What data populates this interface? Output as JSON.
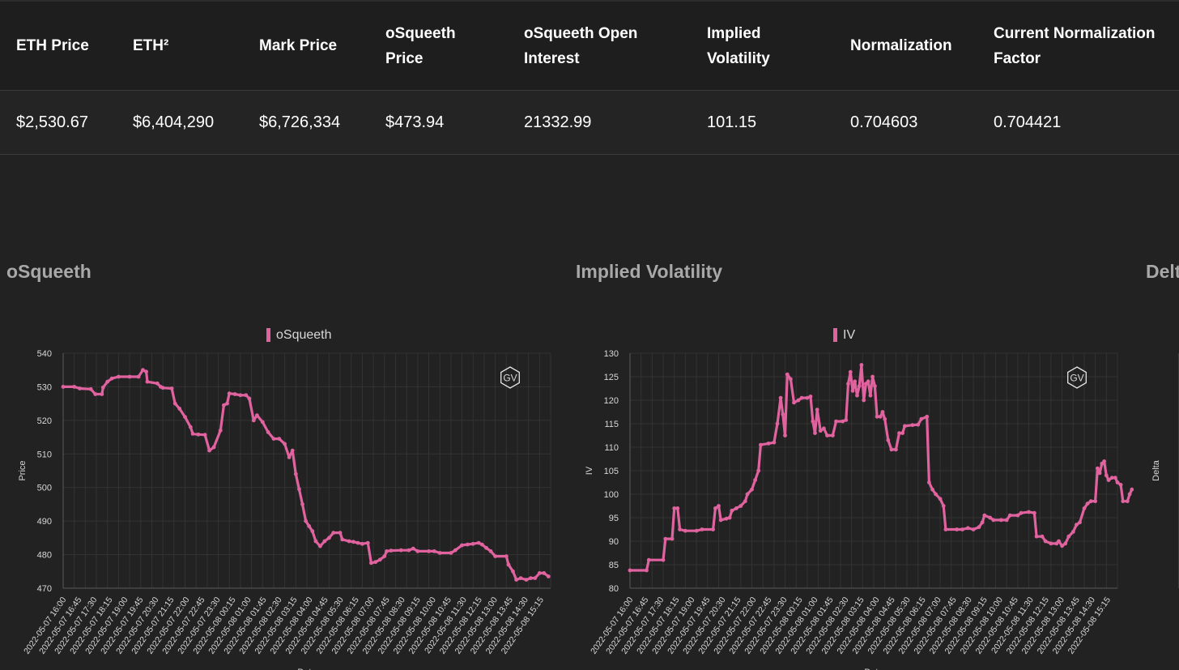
{
  "stats": {
    "headers": [
      "ETH Price",
      "ETH²",
      "Mark Price",
      "oSqueeth Price",
      "oSqueeth Open Interest",
      "Implied Volatility",
      "Normalization",
      "Current Normalization Factor"
    ],
    "values": [
      "$2,530.67",
      "$6,404,290",
      "$6,726,334",
      "$473.94",
      "21332.99",
      "101.15",
      "0.704603",
      "0.704421"
    ]
  },
  "sections": {
    "osqueeth_title": "oSqueeth",
    "iv_title": "Implied Volatility",
    "delta_title": "Delta"
  },
  "colors": {
    "series": "#e0639f",
    "background": "#222222",
    "grid": "#333333"
  },
  "watermark": "GV",
  "x_ticks": [
    "2022-05-07 16:00",
    "2022-05-07 16:45",
    "2022-05-07 17:30",
    "2022-05-07 18:15",
    "2022-05-07 19:00",
    "2022-05-07 19:45",
    "2022-05-07 20:30",
    "2022-05-07 21:15",
    "2022-05-07 22:00",
    "2022-05-07 22:45",
    "2022-05-07 23:30",
    "2022-05-08 00:15",
    "2022-05-08 01:00",
    "2022-05-08 01:45",
    "2022-05-08 02:30",
    "2022-05-08 03:15",
    "2022-05-08 04:00",
    "2022-05-08 04:45",
    "2022-05-08 05:30",
    "2022-05-08 06:15",
    "2022-05-08 07:00",
    "2022-05-08 07:45",
    "2022-05-08 08:30",
    "2022-05-08 09:15",
    "2022-05-08 10:00",
    "2022-05-08 10:45",
    "2022-05-08 11:30",
    "2022-05-08 12:15",
    "2022-05-08 13:00",
    "2022-05-08 13:45",
    "2022-05-08 14:30",
    "2022-05-08 15:15"
  ],
  "chart_data": [
    {
      "type": "line",
      "legend": "oSqueeth",
      "xlabel": "Date",
      "ylabel": "Price",
      "ylim": [
        470,
        540
      ],
      "yticks": [
        470,
        480,
        490,
        500,
        510,
        520,
        530,
        540
      ],
      "grid": true,
      "legend_position": "top-center",
      "series": [
        {
          "name": "oSqueeth",
          "points": [
            [
              0,
              530
            ],
            [
              1.0,
              530
            ],
            [
              1.5,
              529.5
            ],
            [
              2.5,
              529.3
            ],
            [
              2.9,
              527.8
            ],
            [
              3.5,
              527.8
            ],
            [
              3.6,
              529.8
            ],
            [
              4.0,
              531.5
            ],
            [
              4.4,
              532.5
            ],
            [
              5.0,
              533
            ],
            [
              6.0,
              533
            ],
            [
              6.8,
              533
            ],
            [
              7.2,
              535
            ],
            [
              7.5,
              534.5
            ],
            [
              7.6,
              531.5
            ],
            [
              8.5,
              531
            ],
            [
              8.8,
              530
            ],
            [
              9.0,
              529.7
            ],
            [
              9.8,
              529.5
            ],
            [
              10.1,
              525
            ],
            [
              10.5,
              523.5
            ],
            [
              11.0,
              521
            ],
            [
              11.5,
              518
            ],
            [
              11.7,
              516
            ],
            [
              12.2,
              515.8
            ],
            [
              12.8,
              515.7
            ],
            [
              13.2,
              511
            ],
            [
              13.6,
              512
            ],
            [
              14.2,
              517
            ],
            [
              14.5,
              524.5
            ],
            [
              14.8,
              525
            ],
            [
              15.0,
              528
            ],
            [
              15.5,
              527.8
            ],
            [
              16.0,
              527.5
            ],
            [
              16.5,
              527.5
            ],
            [
              16.8,
              526.5
            ],
            [
              17.2,
              520
            ],
            [
              17.5,
              521.5
            ],
            [
              18.0,
              519.5
            ],
            [
              18.5,
              516.5
            ],
            [
              19.0,
              514.5
            ],
            [
              19.5,
              514.5
            ],
            [
              20.0,
              513
            ],
            [
              20.4,
              509
            ],
            [
              20.7,
              511
            ],
            [
              21.0,
              504
            ],
            [
              21.3,
              499.5
            ],
            [
              21.6,
              495
            ],
            [
              21.9,
              490
            ],
            [
              22.2,
              488.5
            ],
            [
              22.5,
              487
            ],
            [
              22.8,
              484
            ],
            [
              23.2,
              482.5
            ],
            [
              23.6,
              484
            ],
            [
              24.0,
              485
            ],
            [
              24.4,
              486.5
            ],
            [
              25.0,
              486.5
            ],
            [
              25.2,
              484.5
            ],
            [
              25.8,
              484
            ],
            [
              26.2,
              483.8
            ],
            [
              26.6,
              483.5
            ],
            [
              27.0,
              483.2
            ],
            [
              27.5,
              483.5
            ],
            [
              27.8,
              477.5
            ],
            [
              28.2,
              477.8
            ],
            [
              28.6,
              478.5
            ],
            [
              29.0,
              479.5
            ],
            [
              29.2,
              481
            ],
            [
              29.6,
              481.2
            ],
            [
              30.5,
              481.3
            ],
            [
              31.2,
              481.3
            ],
            [
              31.6,
              481.8
            ],
            [
              32.0,
              481
            ],
            [
              33.0,
              481
            ],
            [
              33.5,
              481
            ],
            [
              34.0,
              480.5
            ],
            [
              35.0,
              480.5
            ],
            [
              35.4,
              481.3
            ],
            [
              36.0,
              482.8
            ],
            [
              36.5,
              483
            ],
            [
              37.0,
              483.2
            ],
            [
              37.5,
              483.5
            ],
            [
              37.8,
              483
            ],
            [
              38.2,
              482
            ],
            [
              38.6,
              481
            ],
            [
              39.0,
              479.5
            ],
            [
              40.0,
              479.5
            ],
            [
              40.2,
              477
            ],
            [
              40.6,
              475
            ],
            [
              40.9,
              472.5
            ],
            [
              41.3,
              473
            ],
            [
              41.8,
              472.5
            ],
            [
              42.2,
              473
            ],
            [
              42.6,
              473
            ],
            [
              43.0,
              474.5
            ],
            [
              43.4,
              474.5
            ],
            [
              43.8,
              473.5
            ]
          ]
        }
      ]
    },
    {
      "type": "line",
      "legend": "IV",
      "xlabel": "Date",
      "ylabel": "IV",
      "ylim": [
        80,
        130
      ],
      "yticks": [
        80,
        85,
        90,
        95,
        100,
        105,
        110,
        115,
        120,
        125,
        130
      ],
      "grid": true,
      "legend_position": "top-center",
      "series": [
        {
          "name": "IV",
          "points": [
            [
              0,
              83.8
            ],
            [
              1.5,
              83.8
            ],
            [
              1.7,
              86
            ],
            [
              3.0,
              86
            ],
            [
              3.2,
              90.5
            ],
            [
              3.8,
              90.5
            ],
            [
              4.0,
              97
            ],
            [
              4.3,
              97
            ],
            [
              4.5,
              92.5
            ],
            [
              5.0,
              92.2
            ],
            [
              6.0,
              92.2
            ],
            [
              6.5,
              92.5
            ],
            [
              7.5,
              92.5
            ],
            [
              7.7,
              97
            ],
            [
              8.0,
              97.5
            ],
            [
              8.2,
              94.5
            ],
            [
              8.7,
              94.8
            ],
            [
              9.0,
              95
            ],
            [
              9.2,
              96.5
            ],
            [
              9.6,
              97
            ],
            [
              10.0,
              97.5
            ],
            [
              10.4,
              98.5
            ],
            [
              10.6,
              100
            ],
            [
              11.0,
              101
            ],
            [
              11.3,
              103
            ],
            [
              11.6,
              105
            ],
            [
              11.8,
              110.5
            ],
            [
              12.5,
              110.8
            ],
            [
              13.0,
              111
            ],
            [
              13.3,
              115
            ],
            [
              13.6,
              120.5
            ],
            [
              13.8,
              117
            ],
            [
              14.0,
              112.5
            ],
            [
              14.2,
              125.5
            ],
            [
              14.5,
              124.5
            ],
            [
              14.8,
              119.5
            ],
            [
              15.2,
              120
            ],
            [
              15.5,
              120.5
            ],
            [
              16.0,
              120.5
            ],
            [
              16.3,
              120.8
            ],
            [
              16.5,
              115.5
            ],
            [
              16.7,
              113
            ],
            [
              16.9,
              118
            ],
            [
              17.2,
              113.5
            ],
            [
              17.5,
              114
            ],
            [
              17.8,
              112.5
            ],
            [
              18.3,
              112.5
            ],
            [
              18.6,
              115.5
            ],
            [
              19.2,
              115.5
            ],
            [
              19.5,
              115.8
            ],
            [
              19.7,
              123.5
            ],
            [
              19.9,
              126
            ],
            [
              20.1,
              122
            ],
            [
              20.3,
              124
            ],
            [
              20.5,
              121
            ],
            [
              20.7,
              123
            ],
            [
              20.9,
              127.5
            ],
            [
              21.1,
              120
            ],
            [
              21.3,
              123.5
            ],
            [
              21.5,
              124
            ],
            [
              21.7,
              121
            ],
            [
              21.9,
              125
            ],
            [
              22.1,
              123
            ],
            [
              22.3,
              116.5
            ],
            [
              22.6,
              116.5
            ],
            [
              22.8,
              117.5
            ],
            [
              23.0,
              116
            ],
            [
              23.3,
              111.5
            ],
            [
              23.6,
              109.5
            ],
            [
              24.0,
              109.5
            ],
            [
              24.3,
              113
            ],
            [
              24.6,
              113
            ],
            [
              24.8,
              114.5
            ],
            [
              25.5,
              114.7
            ],
            [
              26.0,
              114.8
            ],
            [
              26.3,
              116
            ],
            [
              26.8,
              116.5
            ],
            [
              27.0,
              102.5
            ],
            [
              27.3,
              101
            ],
            [
              27.6,
              100
            ],
            [
              28.0,
              99
            ],
            [
              28.3,
              97.5
            ],
            [
              28.5,
              92.5
            ],
            [
              29.5,
              92.5
            ],
            [
              30.0,
              92.5
            ],
            [
              30.5,
              92.8
            ],
            [
              31.0,
              92.5
            ],
            [
              31.5,
              93
            ],
            [
              31.8,
              94
            ],
            [
              32.0,
              95.5
            ],
            [
              32.5,
              95
            ],
            [
              32.8,
              94.5
            ],
            [
              33.5,
              94.5
            ],
            [
              34.0,
              94.5
            ],
            [
              34.3,
              95.5
            ],
            [
              35.0,
              95.5
            ],
            [
              35.3,
              96
            ],
            [
              36.0,
              96.2
            ],
            [
              36.5,
              96
            ],
            [
              36.7,
              91
            ],
            [
              37.2,
              91
            ],
            [
              37.5,
              90
            ],
            [
              38.0,
              89.5
            ],
            [
              38.5,
              89.5
            ],
            [
              38.7,
              90
            ],
            [
              39.0,
              89
            ],
            [
              39.3,
              89.5
            ],
            [
              39.6,
              91
            ],
            [
              40.0,
              92
            ],
            [
              40.3,
              93.5
            ],
            [
              40.6,
              94
            ],
            [
              41.0,
              97
            ],
            [
              41.3,
              98
            ],
            [
              41.6,
              98.5
            ],
            [
              42.0,
              98.5
            ],
            [
              42.2,
              105.5
            ],
            [
              42.4,
              104.5
            ],
            [
              42.6,
              106.5
            ],
            [
              42.8,
              107
            ],
            [
              43.0,
              104
            ],
            [
              43.2,
              103
            ],
            [
              43.5,
              103.5
            ],
            [
              43.8,
              103.5
            ],
            [
              44.0,
              102.5
            ],
            [
              44.3,
              102
            ],
            [
              44.5,
              98.5
            ],
            [
              44.9,
              98.5
            ],
            [
              45.1,
              100
            ],
            [
              45.3,
              101
            ]
          ]
        }
      ]
    }
  ]
}
